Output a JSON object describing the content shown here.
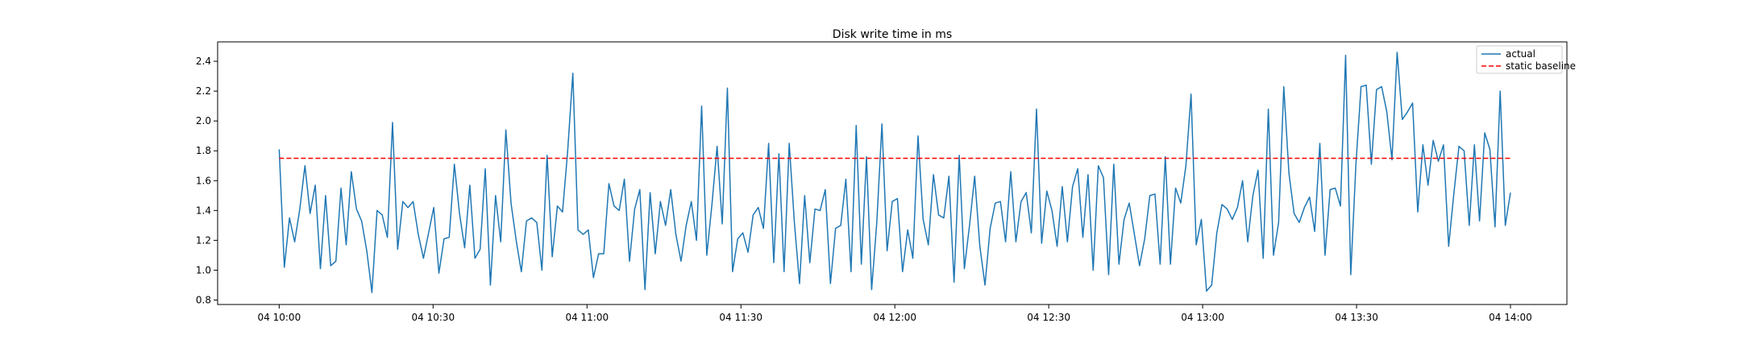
{
  "chart_data": {
    "type": "line",
    "title": "Disk write time in ms",
    "xlabel": "",
    "ylabel": "",
    "x_ticks": [
      "04 10:00",
      "04 10:30",
      "04 11:00",
      "04 11:30",
      "04 12:00",
      "04 12:30",
      "04 13:00",
      "04 13:30",
      "04 14:00"
    ],
    "y_ticks": [
      "0.8",
      "1.0",
      "1.2",
      "1.4",
      "1.6",
      "1.8",
      "2.0",
      "2.2",
      "2.4"
    ],
    "xlim": [
      "04 09:48",
      "04 14:11"
    ],
    "ylim": [
      0.77,
      2.53
    ],
    "grid": false,
    "legend_position": "top-right",
    "series": [
      {
        "name": "actual",
        "color": "#1f77b4",
        "style": "solid",
        "x_start": "04 10:00",
        "x_end": "04 14:00",
        "values": [
          1.81,
          1.02,
          1.35,
          1.19,
          1.41,
          1.7,
          1.38,
          1.57,
          1.01,
          1.5,
          1.03,
          1.06,
          1.55,
          1.17,
          1.66,
          1.41,
          1.33,
          1.13,
          0.85,
          1.4,
          1.37,
          1.22,
          1.99,
          1.14,
          1.46,
          1.42,
          1.46,
          1.24,
          1.08,
          1.25,
          1.42,
          0.98,
          1.21,
          1.22,
          1.71,
          1.38,
          1.15,
          1.57,
          1.08,
          1.14,
          1.68,
          0.9,
          1.5,
          1.19,
          1.94,
          1.45,
          1.2,
          0.99,
          1.33,
          1.35,
          1.32,
          1.0,
          1.77,
          1.09,
          1.43,
          1.39,
          1.8,
          2.32,
          1.27,
          1.24,
          1.27,
          0.95,
          1.11,
          1.11,
          1.58,
          1.43,
          1.4,
          1.61,
          1.06,
          1.41,
          1.54,
          0.87,
          1.52,
          1.11,
          1.46,
          1.3,
          1.54,
          1.24,
          1.06,
          1.3,
          1.46,
          1.2,
          2.1,
          1.1,
          1.44,
          1.83,
          1.31,
          2.22,
          0.99,
          1.21,
          1.25,
          1.12,
          1.37,
          1.42,
          1.28,
          1.85,
          1.05,
          1.78,
          0.99,
          1.85,
          1.32,
          0.91,
          1.5,
          1.05,
          1.41,
          1.4,
          1.54,
          0.91,
          1.28,
          1.3,
          1.61,
          0.99,
          1.97,
          1.04,
          1.76,
          0.87,
          1.32,
          1.98,
          1.13,
          1.46,
          1.48,
          0.99,
          1.27,
          1.08,
          1.9,
          1.34,
          1.17,
          1.64,
          1.37,
          1.35,
          1.63,
          0.92,
          1.77,
          1.01,
          1.3,
          1.63,
          1.16,
          0.9,
          1.28,
          1.45,
          1.46,
          1.19,
          1.66,
          1.19,
          1.46,
          1.52,
          1.25,
          2.08,
          1.18,
          1.53,
          1.4,
          1.16,
          1.56,
          1.19,
          1.56,
          1.68,
          1.22,
          1.64,
          1.0,
          1.7,
          1.62,
          0.97,
          1.71,
          1.04,
          1.34,
          1.45,
          1.24,
          1.03,
          1.21,
          1.5,
          1.51,
          1.04,
          1.76,
          1.04,
          1.55,
          1.45,
          1.7,
          2.18,
          1.17,
          1.34,
          0.86,
          0.9,
          1.25,
          1.44,
          1.41,
          1.34,
          1.42,
          1.6,
          1.19,
          1.5,
          1.67,
          1.08,
          2.08,
          1.1,
          1.32,
          2.23,
          1.65,
          1.38,
          1.32,
          1.42,
          1.49,
          1.26,
          1.85,
          1.1,
          1.54,
          1.55,
          1.43,
          2.44,
          0.97,
          1.71,
          2.23,
          2.24,
          1.71,
          2.21,
          2.23,
          2.06,
          1.74,
          2.46,
          2.01,
          2.06,
          2.12,
          1.39,
          1.84,
          1.57,
          1.87,
          1.73,
          1.84,
          1.16,
          1.51,
          1.83,
          1.8,
          1.3,
          1.84,
          1.33,
          1.92,
          1.81,
          1.29,
          2.2,
          1.3,
          1.52
        ]
      },
      {
        "name": "static baseline",
        "color": "#ff0000",
        "style": "dashed",
        "x_start": "04 10:00",
        "x_end": "04 14:00",
        "values": [
          1.75,
          1.75
        ]
      }
    ]
  }
}
